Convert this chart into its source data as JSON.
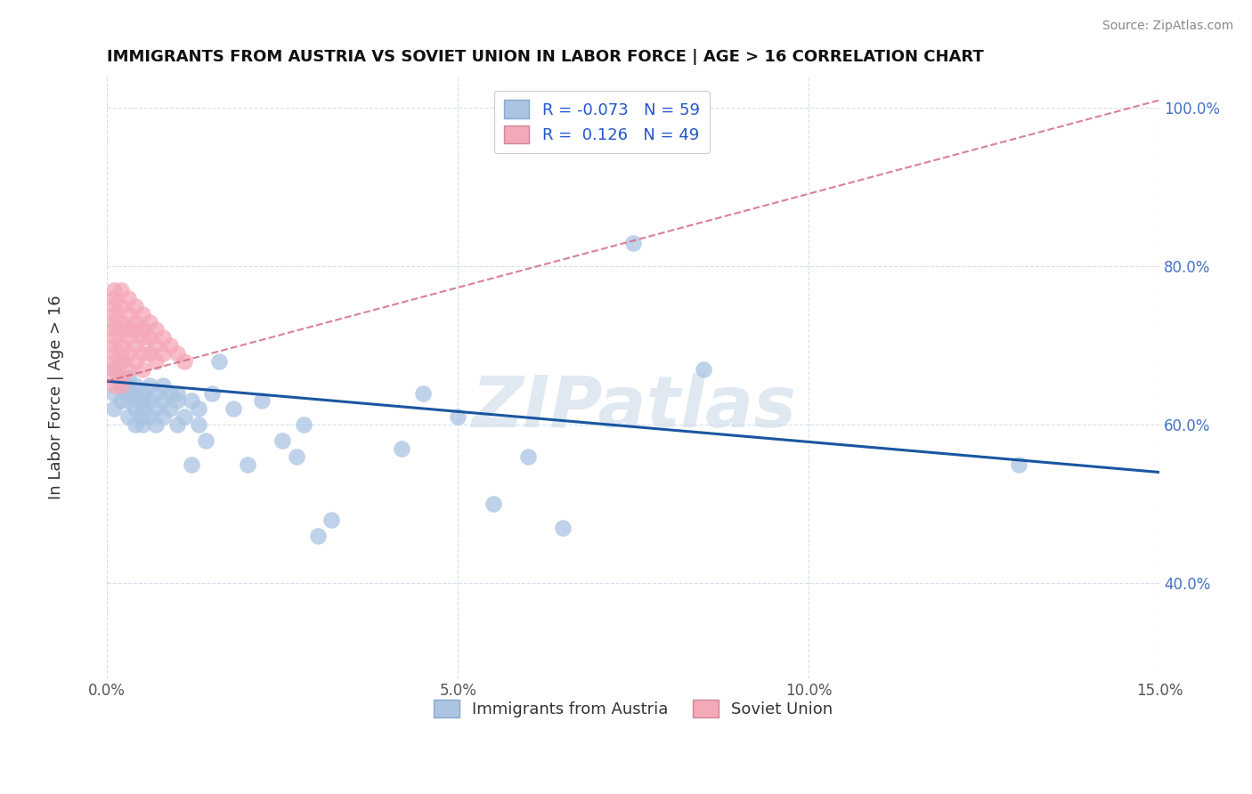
{
  "title": "IMMIGRANTS FROM AUSTRIA VS SOVIET UNION IN LABOR FORCE | AGE > 16 CORRELATION CHART",
  "source": "Source: ZipAtlas.com",
  "ylabel": "In Labor Force | Age > 16",
  "xlim": [
    0.0,
    0.15
  ],
  "ylim": [
    0.28,
    1.04
  ],
  "ytick_vals": [
    0.4,
    0.6,
    0.8,
    1.0
  ],
  "xtick_vals": [
    0.0,
    0.05,
    0.1,
    0.15
  ],
  "austria_R": -0.073,
  "austria_N": 59,
  "soviet_R": 0.126,
  "soviet_N": 49,
  "austria_color": "#aac4e2",
  "soviet_color": "#f5a8b8",
  "austria_line_color": "#1a56a0",
  "soviet_line_color": "#d06080",
  "legend_austria_label": "Immigrants from Austria",
  "legend_soviet_label": "Soviet Union",
  "watermark": "ZIPatlas",
  "austria_x": [
    0.001,
    0.001,
    0.001,
    0.002,
    0.002,
    0.002,
    0.003,
    0.003,
    0.003,
    0.003,
    0.003,
    0.004,
    0.004,
    0.004,
    0.004,
    0.005,
    0.005,
    0.005,
    0.005,
    0.005,
    0.006,
    0.006,
    0.006,
    0.007,
    0.007,
    0.007,
    0.008,
    0.008,
    0.008,
    0.009,
    0.009,
    0.01,
    0.01,
    0.01,
    0.011,
    0.012,
    0.012,
    0.013,
    0.013,
    0.014,
    0.015,
    0.016,
    0.018,
    0.02,
    0.022,
    0.025,
    0.027,
    0.028,
    0.03,
    0.032,
    0.042,
    0.045,
    0.05,
    0.055,
    0.06,
    0.065,
    0.075,
    0.085,
    0.13
  ],
  "austria_y": [
    0.64,
    0.67,
    0.62,
    0.65,
    0.63,
    0.68,
    0.64,
    0.66,
    0.61,
    0.65,
    0.63,
    0.62,
    0.64,
    0.6,
    0.65,
    0.63,
    0.61,
    0.64,
    0.6,
    0.62,
    0.65,
    0.63,
    0.61,
    0.64,
    0.62,
    0.6,
    0.65,
    0.63,
    0.61,
    0.62,
    0.64,
    0.64,
    0.6,
    0.63,
    0.61,
    0.55,
    0.63,
    0.6,
    0.62,
    0.58,
    0.64,
    0.68,
    0.62,
    0.55,
    0.63,
    0.58,
    0.56,
    0.6,
    0.46,
    0.48,
    0.57,
    0.64,
    0.61,
    0.5,
    0.56,
    0.47,
    0.83,
    0.67,
    0.55
  ],
  "soviet_x": [
    0.001,
    0.001,
    0.001,
    0.001,
    0.001,
    0.001,
    0.001,
    0.001,
    0.001,
    0.001,
    0.001,
    0.001,
    0.001,
    0.002,
    0.002,
    0.002,
    0.002,
    0.002,
    0.002,
    0.002,
    0.002,
    0.002,
    0.003,
    0.003,
    0.003,
    0.003,
    0.003,
    0.003,
    0.004,
    0.004,
    0.004,
    0.004,
    0.004,
    0.005,
    0.005,
    0.005,
    0.005,
    0.005,
    0.006,
    0.006,
    0.006,
    0.007,
    0.007,
    0.007,
    0.008,
    0.008,
    0.009,
    0.01,
    0.011
  ],
  "soviet_y": [
    0.77,
    0.76,
    0.75,
    0.74,
    0.73,
    0.72,
    0.71,
    0.7,
    0.69,
    0.68,
    0.67,
    0.66,
    0.65,
    0.77,
    0.75,
    0.73,
    0.72,
    0.7,
    0.69,
    0.68,
    0.66,
    0.65,
    0.76,
    0.74,
    0.72,
    0.71,
    0.69,
    0.67,
    0.75,
    0.73,
    0.72,
    0.7,
    0.68,
    0.74,
    0.72,
    0.71,
    0.69,
    0.67,
    0.73,
    0.71,
    0.69,
    0.72,
    0.7,
    0.68,
    0.71,
    0.69,
    0.7,
    0.69,
    0.68
  ],
  "austria_trendline_x": [
    0.0,
    0.15
  ],
  "austria_trendline_y": [
    0.655,
    0.54
  ],
  "soviet_trendline_x": [
    0.0,
    0.15
  ],
  "soviet_trendline_y": [
    0.655,
    1.01
  ]
}
